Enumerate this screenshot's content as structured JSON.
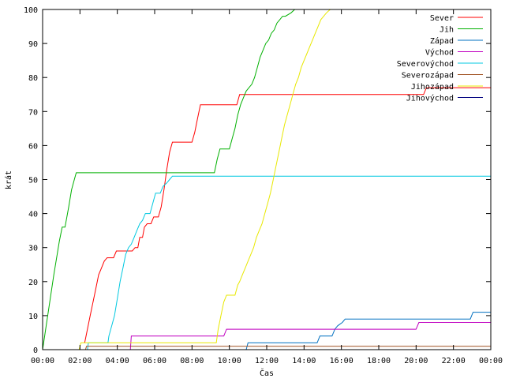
{
  "chart_data": {
    "type": "line",
    "title": "",
    "xlabel": "Čas",
    "ylabel": "krát",
    "x_ticks": [
      "00:00",
      "02:00",
      "04:00",
      "06:00",
      "08:00",
      "10:00",
      "12:00",
      "14:00",
      "16:00",
      "18:00",
      "20:00",
      "22:00",
      "00:00"
    ],
    "xlim": [
      0,
      24
    ],
    "ylim": [
      0,
      100
    ],
    "y_ticks": [
      0,
      10,
      20,
      30,
      40,
      50,
      60,
      70,
      80,
      90,
      100
    ],
    "grid": false,
    "legend_position": "top-right",
    "series": [
      {
        "name": "Sever",
        "color": "#ff0000",
        "points": [
          [
            2.25,
            2
          ],
          [
            2.4,
            6
          ],
          [
            2.55,
            10
          ],
          [
            2.7,
            14
          ],
          [
            2.85,
            18
          ],
          [
            3.0,
            22
          ],
          [
            3.15,
            24
          ],
          [
            3.3,
            26
          ],
          [
            3.45,
            27
          ],
          [
            3.8,
            27
          ],
          [
            3.95,
            29
          ],
          [
            4.8,
            29
          ],
          [
            4.95,
            30
          ],
          [
            5.1,
            30
          ],
          [
            5.2,
            33
          ],
          [
            5.35,
            33
          ],
          [
            5.45,
            36
          ],
          [
            5.6,
            37
          ],
          [
            5.8,
            37
          ],
          [
            5.95,
            39
          ],
          [
            6.2,
            39
          ],
          [
            6.35,
            42
          ],
          [
            6.5,
            47
          ],
          [
            6.65,
            53
          ],
          [
            6.8,
            58
          ],
          [
            6.95,
            61
          ],
          [
            8.0,
            61
          ],
          [
            8.15,
            64
          ],
          [
            8.3,
            68
          ],
          [
            8.45,
            72
          ],
          [
            10.4,
            72
          ],
          [
            10.55,
            75
          ],
          [
            20.4,
            75
          ],
          [
            20.55,
            77
          ],
          [
            24,
            77
          ]
        ]
      },
      {
        "name": "Jih",
        "color": "#00b000",
        "points": [
          [
            0,
            0
          ],
          [
            0.3,
            11
          ],
          [
            0.6,
            22
          ],
          [
            0.9,
            32
          ],
          [
            1.05,
            36
          ],
          [
            1.2,
            36
          ],
          [
            1.4,
            42
          ],
          [
            1.55,
            47
          ],
          [
            1.7,
            50
          ],
          [
            1.8,
            52
          ],
          [
            9.2,
            52
          ],
          [
            9.35,
            56
          ],
          [
            9.5,
            59
          ],
          [
            10.0,
            59
          ],
          [
            10.15,
            62
          ],
          [
            10.3,
            65
          ],
          [
            10.45,
            69
          ],
          [
            10.6,
            72
          ],
          [
            10.75,
            74
          ],
          [
            10.9,
            76
          ],
          [
            11.05,
            77
          ],
          [
            11.2,
            78
          ],
          [
            11.35,
            80
          ],
          [
            11.5,
            83
          ],
          [
            11.65,
            86
          ],
          [
            11.8,
            88
          ],
          [
            11.95,
            90
          ],
          [
            12.1,
            91
          ],
          [
            12.25,
            93
          ],
          [
            12.4,
            94
          ],
          [
            12.55,
            96
          ],
          [
            12.7,
            97
          ],
          [
            12.85,
            98
          ],
          [
            13.0,
            98
          ],
          [
            13.3,
            99
          ],
          [
            13.5,
            100
          ]
        ]
      },
      {
        "name": "Západ",
        "color": "#0070c0",
        "points": [
          [
            10.9,
            0
          ],
          [
            11.0,
            2
          ],
          [
            14.7,
            2
          ],
          [
            14.85,
            4
          ],
          [
            15.5,
            4
          ],
          [
            15.65,
            6
          ],
          [
            15.8,
            7
          ],
          [
            16.05,
            8
          ],
          [
            16.2,
            9
          ],
          [
            22.9,
            9
          ],
          [
            23.05,
            11
          ],
          [
            24,
            11
          ]
        ]
      },
      {
        "name": "Východ",
        "color": "#c000c0",
        "points": [
          [
            4.7,
            0
          ],
          [
            4.75,
            4
          ],
          [
            9.7,
            4
          ],
          [
            9.85,
            6
          ],
          [
            20.0,
            6
          ],
          [
            20.15,
            8
          ],
          [
            24,
            8
          ]
        ]
      },
      {
        "name": "Severovýchod",
        "color": "#00c8e0",
        "points": [
          [
            2.4,
            0
          ],
          [
            2.45,
            2
          ],
          [
            3.5,
            2
          ],
          [
            3.55,
            4
          ],
          [
            3.7,
            7
          ],
          [
            3.85,
            10
          ],
          [
            4.0,
            15
          ],
          [
            4.15,
            20
          ],
          [
            4.3,
            24
          ],
          [
            4.45,
            28
          ],
          [
            4.6,
            30
          ],
          [
            4.75,
            31
          ],
          [
            4.9,
            33
          ],
          [
            5.05,
            35
          ],
          [
            5.2,
            37
          ],
          [
            5.35,
            38
          ],
          [
            5.5,
            40
          ],
          [
            5.75,
            40
          ],
          [
            5.9,
            43
          ],
          [
            6.05,
            46
          ],
          [
            6.3,
            46
          ],
          [
            6.45,
            48
          ],
          [
            6.65,
            49
          ],
          [
            6.8,
            50
          ],
          [
            6.95,
            51
          ],
          [
            24,
            51
          ]
        ]
      },
      {
        "name": "Severozápad",
        "color": "#a05020",
        "points": [
          [
            2.3,
            0
          ],
          [
            2.35,
            1
          ],
          [
            24,
            1
          ]
        ]
      },
      {
        "name": "Jihozápad",
        "color": "#e8e800",
        "points": [
          [
            1.95,
            0
          ],
          [
            2.05,
            2
          ],
          [
            9.3,
            2
          ],
          [
            9.4,
            6
          ],
          [
            9.55,
            10
          ],
          [
            9.7,
            14
          ],
          [
            9.85,
            16
          ],
          [
            10.3,
            16
          ],
          [
            10.45,
            19
          ],
          [
            10.55,
            20
          ],
          [
            10.7,
            22
          ],
          [
            10.85,
            24
          ],
          [
            11.0,
            26
          ],
          [
            11.15,
            28
          ],
          [
            11.3,
            30
          ],
          [
            11.45,
            33
          ],
          [
            11.6,
            35
          ],
          [
            11.75,
            37
          ],
          [
            11.9,
            40
          ],
          [
            12.05,
            43
          ],
          [
            12.2,
            46
          ],
          [
            12.35,
            50
          ],
          [
            12.5,
            54
          ],
          [
            12.65,
            58
          ],
          [
            12.8,
            62
          ],
          [
            12.95,
            66
          ],
          [
            13.1,
            69
          ],
          [
            13.25,
            72
          ],
          [
            13.4,
            75
          ],
          [
            13.55,
            78
          ],
          [
            13.7,
            80
          ],
          [
            13.85,
            83
          ],
          [
            14.0,
            85
          ],
          [
            14.15,
            87
          ],
          [
            14.3,
            89
          ],
          [
            14.45,
            91
          ],
          [
            14.6,
            93
          ],
          [
            14.75,
            95
          ],
          [
            14.9,
            97
          ],
          [
            15.05,
            98
          ],
          [
            15.2,
            99
          ],
          [
            15.4,
            100
          ]
        ]
      },
      {
        "name": "Jihovýchod",
        "color": "#000080",
        "points": []
      }
    ]
  }
}
